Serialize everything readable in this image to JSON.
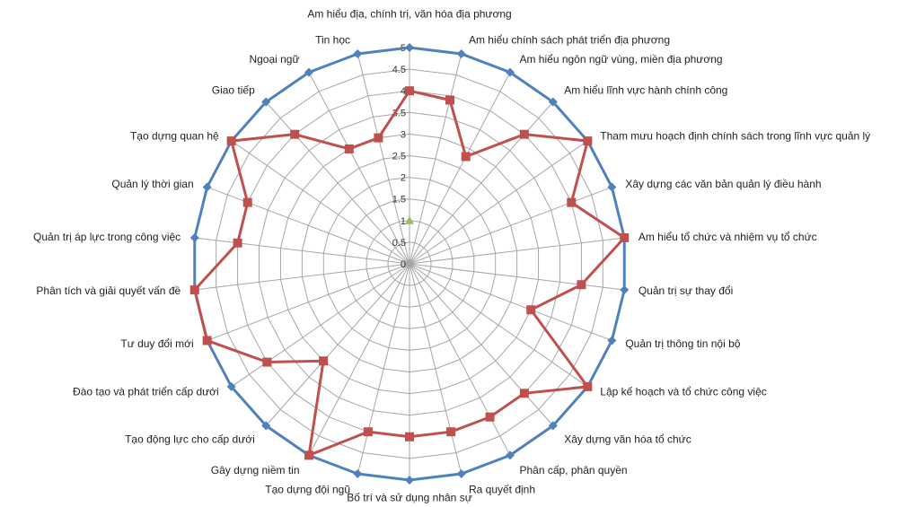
{
  "chart_data": {
    "type": "radar",
    "title": "",
    "rlim": [
      0,
      5
    ],
    "r_ticks": [
      "0",
      "0.5",
      "1",
      "1.5",
      "2",
      "2.5",
      "3",
      "3.5",
      "4",
      "4.5",
      "5"
    ],
    "grid": true,
    "legend": "none",
    "categories": [
      "Am hiểu địa, chính trị, văn hóa địa phương",
      "Am hiểu chính sách phát triển địa phương",
      "Am hiểu ngôn ngữ vùng,  miền địa phương",
      "Am hiểu lĩnh vực hành chính công",
      "Tham mưu hoạch định chính sách trong lĩnh vực quản lý",
      "Xây dựng các văn bản quản lý điều hành",
      "Am hiểu tổ chức và nhiệm vụ tổ chức",
      "Quản trị sự thay đổi",
      "Quản trị thông tin nội bộ",
      "Lập kế hoạch và tổ chức công việc",
      "Xây dựng văn hóa tổ chức",
      "Phân cấp, phân quyền",
      "Ra quyết định",
      "Bố trí và sử dụng nhân sự",
      "Tạo dựng đội ngũ",
      "Gây dựng niềm tin",
      "Tạo động lực cho cấp dưới",
      "Đào tạo và  phát triển cấp dưới",
      "Tư duy đổi mới",
      "Phân tích và  giải quyết vấn đề",
      "Quản trị áp lực trong công việc",
      "Quản lý thời gian",
      "Tạo dựng quan hệ",
      "Giao tiếp",
      "Ngoại ngữ",
      "Tin học"
    ],
    "series": [
      {
        "color": "#4f81bd",
        "marker": "diamond",
        "values": [
          5,
          5,
          5,
          5,
          5,
          5,
          5,
          5,
          5,
          5,
          5,
          5,
          5,
          5,
          5,
          5,
          5,
          5,
          5,
          5,
          5,
          5,
          5,
          5,
          5,
          5
        ]
      },
      {
        "color": "#c0504d",
        "marker": "square",
        "values": [
          4,
          3.9,
          2.8,
          4,
          5,
          4,
          5,
          4,
          3,
          5,
          4,
          4,
          4,
          4,
          4,
          5,
          3,
          4,
          5,
          5,
          4,
          4,
          5,
          4,
          3,
          3
        ]
      },
      {
        "color": "#9bbb59",
        "marker": "triangle",
        "values": [
          1,
          null,
          null,
          null,
          null,
          null,
          null,
          null,
          null,
          null,
          null,
          null,
          null,
          null,
          null,
          null,
          null,
          null,
          null,
          null,
          null,
          null,
          null,
          null,
          null,
          null
        ]
      }
    ]
  }
}
